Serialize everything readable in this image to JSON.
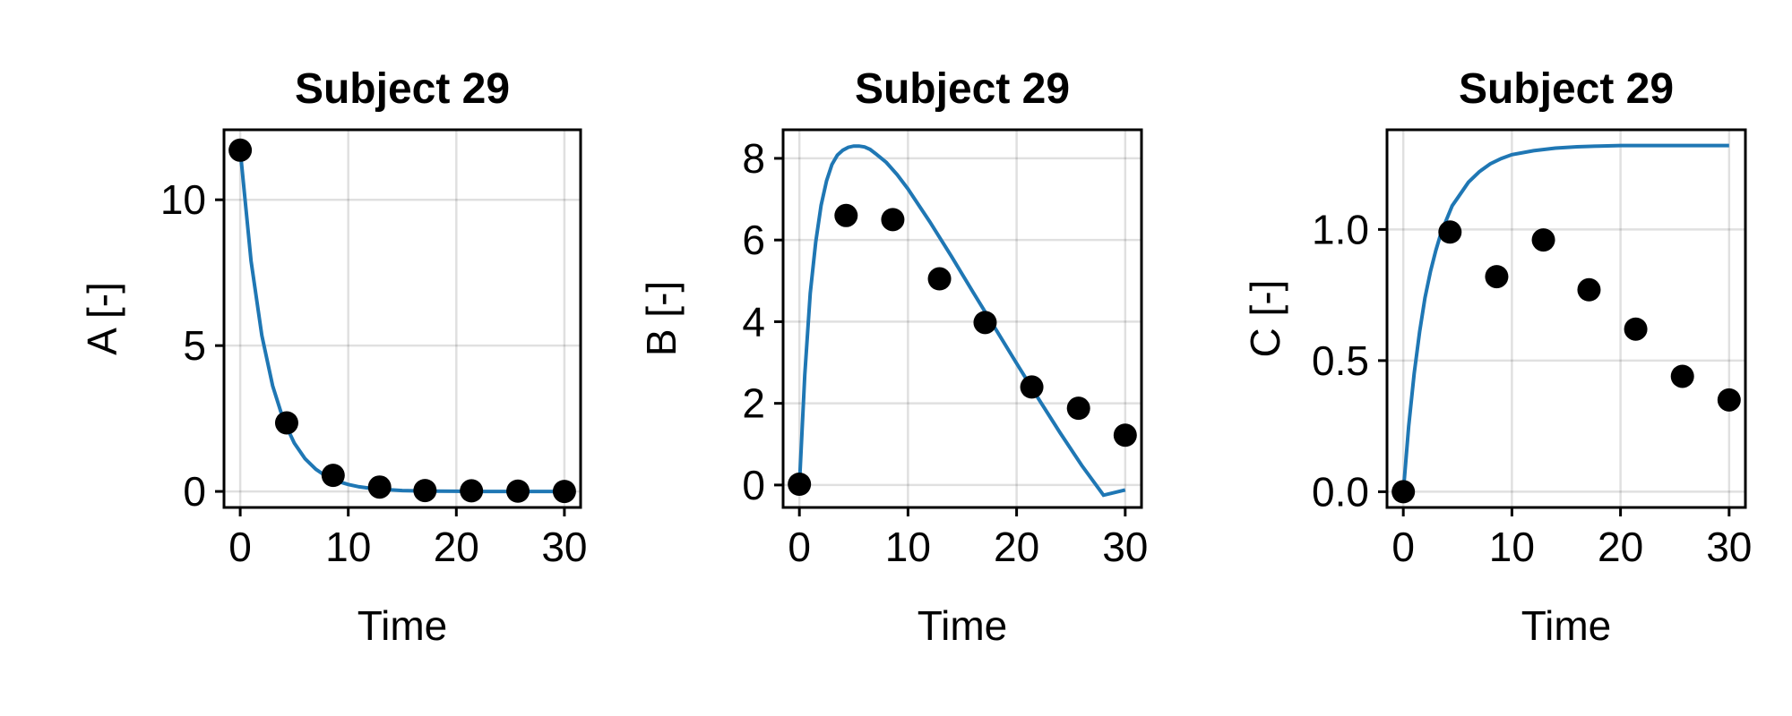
{
  "chart_data": [
    {
      "type": "line",
      "title": "Subject 29",
      "xlabel": "Time",
      "ylabel": "A [-]",
      "xlim": [
        -1.5,
        31.5
      ],
      "ylim": [
        -0.55,
        12.4
      ],
      "xticks": [
        0,
        10,
        20,
        30
      ],
      "xtick_labels": [
        "0",
        "10",
        "20",
        "30"
      ],
      "yticks": [
        0,
        5,
        10
      ],
      "ytick_labels": [
        "0",
        "5",
        "10"
      ],
      "grid": true,
      "series": [
        {
          "style": "line",
          "color": "#1f77b4",
          "x": [
            0,
            1,
            2,
            3,
            4,
            5,
            6,
            7,
            8,
            9,
            10,
            11,
            12,
            13,
            14,
            15,
            16,
            18,
            20,
            22,
            24,
            26,
            28,
            30
          ],
          "y": [
            11.7,
            7.9,
            5.35,
            3.62,
            2.45,
            1.66,
            1.12,
            0.76,
            0.51,
            0.35,
            0.24,
            0.16,
            0.11,
            0.07,
            0.05,
            0.03,
            0.02,
            0.01,
            0.005,
            0.0,
            0.0,
            0.0,
            0.0,
            0.0
          ]
        },
        {
          "style": "scatter",
          "color": "#000000",
          "x": [
            0,
            4.3,
            8.6,
            12.9,
            17.1,
            21.4,
            25.7,
            30
          ],
          "y": [
            11.7,
            2.35,
            0.55,
            0.15,
            0.03,
            0.02,
            0.01,
            0.0
          ]
        }
      ]
    },
    {
      "type": "line",
      "title": "Subject 29",
      "xlabel": "Time",
      "ylabel": "B [-]",
      "xlim": [
        -1.5,
        31.5
      ],
      "ylim": [
        -0.55,
        8.7
      ],
      "xticks": [
        0,
        10,
        20,
        30
      ],
      "xtick_labels": [
        "0",
        "10",
        "20",
        "30"
      ],
      "yticks": [
        0,
        2,
        4,
        6,
        8
      ],
      "ytick_labels": [
        "0",
        "2",
        "4",
        "6",
        "8"
      ],
      "grid": true,
      "series": [
        {
          "style": "line",
          "color": "#1f77b4",
          "x": [
            0,
            0.5,
            1,
            1.5,
            2,
            2.5,
            3,
            3.5,
            4,
            4.5,
            5,
            5.5,
            6,
            6.5,
            7,
            8,
            9,
            10,
            12,
            14,
            16,
            18,
            20,
            22,
            24,
            26,
            28,
            30
          ],
          "y": [
            0,
            2.7,
            4.7,
            5.95,
            6.85,
            7.45,
            7.85,
            8.08,
            8.2,
            8.27,
            8.3,
            8.3,
            8.28,
            8.22,
            8.12,
            7.9,
            7.6,
            7.25,
            6.45,
            5.6,
            4.72,
            3.85,
            2.98,
            2.12,
            1.28,
            0.48,
            -0.25,
            -0.12
          ]
        },
        {
          "style": "scatter",
          "color": "#000000",
          "x": [
            0,
            4.3,
            8.6,
            12.9,
            17.1,
            21.4,
            25.7,
            30
          ],
          "y": [
            0.02,
            6.6,
            6.5,
            5.05,
            3.98,
            2.4,
            1.88,
            1.22
          ]
        }
      ]
    },
    {
      "type": "line",
      "title": "Subject 29",
      "xlabel": "Time",
      "ylabel": "C [-]",
      "xlim": [
        -1.5,
        31.5
      ],
      "ylim": [
        -0.06,
        1.38
      ],
      "xticks": [
        0,
        10,
        20,
        30
      ],
      "xtick_labels": [
        "0",
        "10",
        "20",
        "30"
      ],
      "yticks": [
        0.0,
        0.5,
        1.0
      ],
      "ytick_labels": [
        "0.0",
        "0.5",
        "1.0"
      ],
      "grid": true,
      "series": [
        {
          "style": "line",
          "color": "#1f77b4",
          "x": [
            0,
            0.5,
            1,
            1.5,
            2,
            2.5,
            3,
            3.5,
            4,
            4.5,
            5,
            6,
            7,
            8,
            9,
            10,
            12,
            14,
            16,
            18,
            20,
            22,
            25,
            30
          ],
          "y": [
            0,
            0.25,
            0.45,
            0.61,
            0.74,
            0.84,
            0.92,
            0.99,
            1.04,
            1.09,
            1.12,
            1.18,
            1.22,
            1.25,
            1.27,
            1.285,
            1.3,
            1.31,
            1.315,
            1.318,
            1.32,
            1.32,
            1.32,
            1.32
          ]
        },
        {
          "style": "scatter",
          "color": "#000000",
          "x": [
            0,
            4.3,
            8.6,
            12.9,
            17.1,
            21.4,
            25.7,
            30
          ],
          "y": [
            0.0,
            0.99,
            0.82,
            0.96,
            0.77,
            0.62,
            0.44,
            0.35
          ]
        }
      ]
    }
  ]
}
